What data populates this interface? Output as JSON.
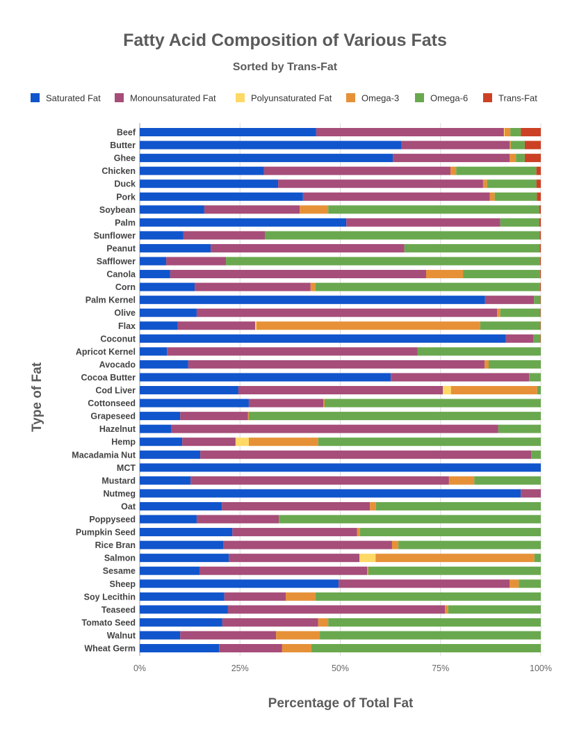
{
  "chart_data": {
    "type": "bar",
    "orientation": "horizontal",
    "stacked": true,
    "title": "Fatty Acid Composition of Various Fats",
    "subtitle": "Sorted by Trans-Fat",
    "xlabel": "Percentage of Total Fat",
    "ylabel": "Type of Fat",
    "xlim": [
      0,
      100
    ],
    "x_tick_values": [
      0,
      25,
      50,
      75,
      100
    ],
    "x_tick_labels": [
      "0%",
      "25%",
      "50%",
      "75%",
      "100%"
    ],
    "grid": true,
    "legend_position": "top",
    "categories": [
      "Beef",
      "Butter",
      "Ghee",
      "Chicken",
      "Duck",
      "Pork",
      "Soybean",
      "Palm",
      "Sunflower",
      "Peanut",
      "Safflower",
      "Canola",
      "Corn",
      "Palm Kernel",
      "Olive",
      "Flax",
      "Coconut",
      "Apricot Kernel",
      "Avocado",
      "Cocoa Butter",
      "Cod Liver",
      "Cottonseed",
      "Grapeseed",
      "Hazelnut",
      "Hemp",
      "Macadamia Nut",
      "MCT",
      "Mustard",
      "Nutmeg",
      "Oat",
      "Poppyseed",
      "Pumpkin Seed",
      "Rice Bran",
      "Salmon",
      "Sesame",
      "Sheep",
      "Soy Lecithin",
      "Teaseed",
      "Tomato Seed",
      "Walnut",
      "Wheat Germ"
    ],
    "series": [
      {
        "name": "Saturated Fat",
        "color": "#1155cc",
        "values": [
          44.0,
          65.3,
          63.1,
          31.0,
          34.5,
          40.7,
          16.1,
          51.5,
          10.9,
          17.7,
          6.6,
          7.6,
          13.7,
          86.1,
          14.2,
          9.5,
          91.3,
          6.8,
          12.1,
          62.6,
          24.6,
          27.2,
          10.1,
          7.8,
          10.6,
          15.1,
          100,
          12.7,
          95.0,
          20.5,
          14.2,
          23.1,
          20.8,
          22.2,
          14.9,
          49.6,
          21.1,
          22.0,
          20.6,
          10.1,
          19.8
        ]
      },
      {
        "name": "Monounsaturated Fat",
        "color": "#a64d79",
        "values": [
          46.8,
          26.9,
          29.1,
          46.5,
          51.1,
          46.6,
          23.8,
          38.4,
          20.3,
          48.3,
          14.9,
          63.8,
          28.9,
          12.2,
          74.9,
          19.3,
          6.8,
          62.5,
          73.9,
          34.5,
          51.0,
          18.6,
          16.9,
          81.6,
          13.3,
          82.5,
          0,
          64.4,
          5.0,
          36.9,
          20.5,
          31.1,
          42.1,
          32.6,
          41.8,
          42.6,
          15.3,
          54.1,
          23.9,
          23.9,
          15.7
        ]
      },
      {
        "name": "Polyunsaturated Fat",
        "color": "#ffd966",
        "values": [
          0.2,
          0,
          0,
          0,
          0,
          0,
          0,
          0,
          0,
          0,
          0,
          0,
          0,
          0,
          0,
          0.3,
          0,
          0,
          0,
          0,
          2.0,
          0,
          0,
          0,
          3.3,
          0,
          0,
          0,
          0,
          0,
          0,
          0,
          0,
          4.0,
          0,
          0,
          0,
          0,
          0,
          0,
          0
        ]
      },
      {
        "name": "Omega-3",
        "color": "#e69138",
        "values": [
          1.4,
          0.3,
          1.6,
          1.4,
          1.0,
          1.2,
          7.1,
          0,
          0,
          0,
          0,
          9.2,
          1.2,
          0,
          0.8,
          55.8,
          0,
          0,
          1.0,
          0,
          21.5,
          0.3,
          0.2,
          0,
          17.3,
          0,
          0,
          6.3,
          0,
          1.5,
          0,
          0.7,
          1.6,
          39.6,
          0.3,
          2.3,
          7.4,
          0.8,
          2.5,
          10.9,
          7.3
        ]
      },
      {
        "name": "Omega-6",
        "color": "#6aa84f",
        "values": [
          2.6,
          3.5,
          2.2,
          20.0,
          12.3,
          10.5,
          52.6,
          9.7,
          68.5,
          33.7,
          78.3,
          19.2,
          56.0,
          1.6,
          10.0,
          15.0,
          1.8,
          30.7,
          13.0,
          2.9,
          0.9,
          53.9,
          72.8,
          10.6,
          55.5,
          2.4,
          0,
          16.6,
          0,
          41.1,
          65.3,
          45.1,
          35.5,
          1.6,
          43.0,
          5.5,
          56.2,
          23.1,
          53.0,
          55.1,
          57.2
        ]
      },
      {
        "name": "Trans-Fat",
        "color": "#cc4125",
        "values": [
          5.0,
          4.0,
          4.0,
          1.1,
          1.1,
          1.0,
          0.4,
          0.4,
          0.3,
          0.3,
          0.2,
          0.2,
          0.2,
          0.1,
          0.1,
          0.1,
          0.1,
          0,
          0,
          0,
          0,
          0,
          0,
          0,
          0,
          0,
          0,
          0,
          0,
          0,
          0,
          0,
          0,
          0,
          0,
          0,
          0,
          0,
          0,
          0,
          0
        ]
      }
    ]
  }
}
